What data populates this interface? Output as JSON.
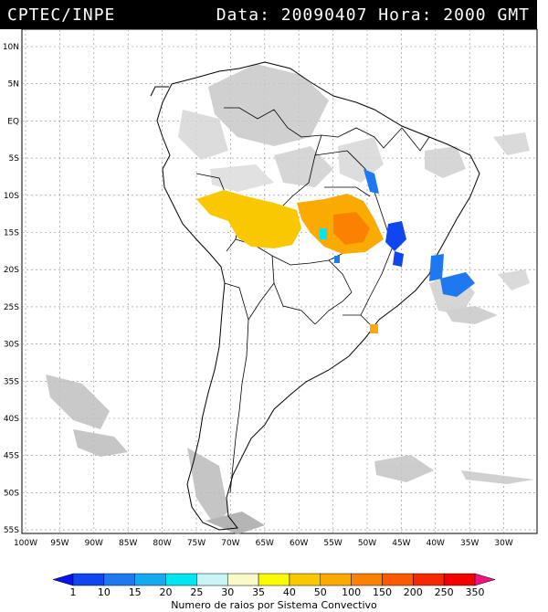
{
  "header": {
    "source": "CPTEC/INPE",
    "datetime": "Data: 20090407 Hora: 2000 GMT"
  },
  "axes": {
    "lat_labels": [
      "10N",
      "5N",
      "EQ",
      "5S",
      "10S",
      "15S",
      "20S",
      "25S",
      "30S",
      "35S",
      "40S",
      "45S",
      "50S",
      "55S"
    ],
    "lon_labels": [
      "100W",
      "95W",
      "90W",
      "85W",
      "80W",
      "75W",
      "70W",
      "65W",
      "60W",
      "55W",
      "50W",
      "45W",
      "40W",
      "35W",
      "30W"
    ]
  },
  "legend": {
    "values": [
      "1",
      "10",
      "15",
      "20",
      "25",
      "30",
      "35",
      "40",
      "50",
      "100",
      "150",
      "200",
      "250",
      "350"
    ],
    "colors": [
      "#0a14e6",
      "#0f46f0",
      "#1e78f0",
      "#14aaf0",
      "#00e6f0",
      "#c8f5f5",
      "#fafac8",
      "#fafa00",
      "#fac800",
      "#faaa00",
      "#fa8200",
      "#fa5a00",
      "#f52800",
      "#f50000",
      "#f0147d"
    ],
    "caption": "Numero de raios por Sistema Convectivo"
  }
}
